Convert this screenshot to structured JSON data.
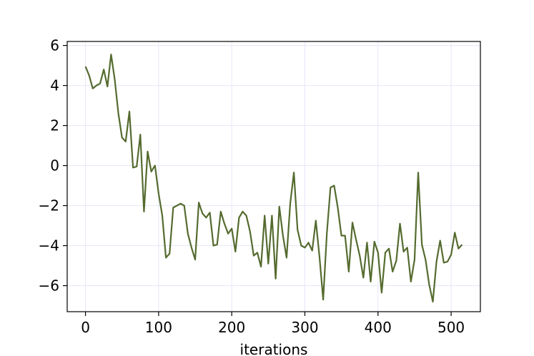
{
  "chart_data": {
    "type": "line",
    "title": "",
    "xlabel": "iterations",
    "ylabel": "",
    "xlim": [
      -25,
      540
    ],
    "ylim": [
      -7.3,
      6.2
    ],
    "grid": true,
    "legend": "none",
    "colors": {
      "line": "#556b2f",
      "grid": "#e6e6fa",
      "axes": "#000000"
    },
    "x_ticks": [
      0,
      100,
      200,
      300,
      400,
      500
    ],
    "x_tick_labels": [
      "0",
      "100",
      "200",
      "300",
      "400",
      "500"
    ],
    "y_ticks": [
      -6,
      -4,
      -2,
      0,
      2,
      4,
      6
    ],
    "y_tick_labels": [
      "−6",
      "−4",
      "−2",
      "0",
      "2",
      "4",
      "6"
    ],
    "series": [
      {
        "x": [
          0,
          5,
          10,
          15,
          20,
          25,
          30,
          35,
          40,
          45,
          50,
          55,
          60,
          65,
          70,
          75,
          80,
          85,
          90,
          95,
          100,
          105,
          110,
          115,
          120,
          125,
          130,
          135,
          140,
          145,
          150,
          155,
          160,
          165,
          170,
          175,
          180,
          185,
          190,
          195,
          200,
          205,
          210,
          215,
          220,
          225,
          230,
          235,
          240,
          245,
          250,
          255,
          260,
          265,
          270,
          275,
          280,
          285,
          290,
          295,
          300,
          305,
          310,
          315,
          320,
          325,
          330,
          335,
          340,
          345,
          350,
          355,
          360,
          365,
          370,
          375,
          380,
          385,
          390,
          395,
          400,
          405,
          410,
          415,
          420,
          425,
          430,
          435,
          440,
          445,
          450,
          455,
          460,
          465,
          470,
          475,
          480,
          485,
          490,
          495,
          500,
          505,
          510,
          515
        ],
        "y": [
          4.95,
          4.5,
          3.85,
          4.0,
          4.1,
          4.8,
          3.95,
          5.55,
          4.3,
          2.6,
          1.4,
          1.2,
          2.7,
          -0.1,
          -0.05,
          1.55,
          -2.3,
          0.7,
          -0.3,
          0.0,
          -1.4,
          -2.5,
          -4.6,
          -4.4,
          -2.1,
          -2.0,
          -1.9,
          -2.0,
          -3.4,
          -4.1,
          -4.7,
          -1.85,
          -2.4,
          -2.6,
          -2.35,
          -4.0,
          -3.95,
          -2.3,
          -2.9,
          -3.4,
          -3.15,
          -4.3,
          -2.6,
          -2.3,
          -2.5,
          -3.3,
          -4.5,
          -4.35,
          -5.05,
          -2.5,
          -4.9,
          -2.5,
          -5.65,
          -2.05,
          -3.5,
          -4.6,
          -1.9,
          -0.35,
          -3.2,
          -4.0,
          -4.1,
          -3.85,
          -4.25,
          -2.75,
          -4.55,
          -6.7,
          -3.4,
          -1.1,
          -1.0,
          -2.1,
          -3.5,
          -3.5,
          -5.3,
          -2.85,
          -3.7,
          -4.5,
          -5.6,
          -3.85,
          -5.8,
          -3.8,
          -4.35,
          -6.35,
          -4.35,
          -4.15,
          -5.3,
          -4.75,
          -2.9,
          -4.3,
          -4.1,
          -5.8,
          -4.7,
          -0.35,
          -3.95,
          -4.7,
          -5.95,
          -6.8,
          -4.8,
          -3.75,
          -4.85,
          -4.8,
          -4.45,
          -3.35,
          -4.15,
          -3.95
        ]
      }
    ]
  }
}
